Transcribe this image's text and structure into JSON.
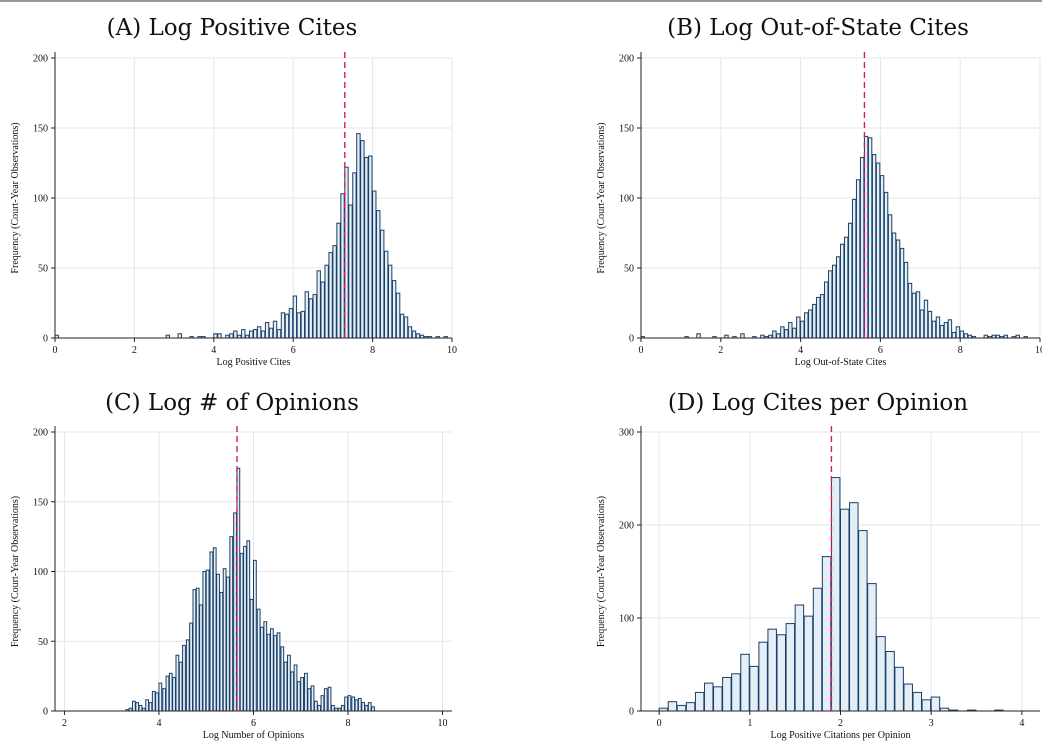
{
  "colors": {
    "bar_fill": "#e3eef7",
    "bar_stroke": "#1b3f66",
    "mean_line": "#d81b60",
    "grid": "#e6e6e6"
  },
  "chart_data": [
    {
      "type": "bar",
      "title": "(A) Log Positive Cites",
      "xlabel": "Log Positive Cites",
      "ylabel": "Frequency (Court-Year Observations)",
      "xlim": [
        0,
        10
      ],
      "ylim": [
        0,
        200
      ],
      "x_ticks": [
        "0",
        "2",
        "4",
        "6",
        "8",
        "10"
      ],
      "y_ticks": [
        "0",
        "50",
        "100",
        "150",
        "200"
      ],
      "grid": true,
      "mean_line": 7.3,
      "bin_width": 0.1,
      "bins": [
        [
          0.0,
          2
        ],
        [
          2.8,
          2
        ],
        [
          3.1,
          3
        ],
        [
          3.4,
          1
        ],
        [
          3.6,
          1
        ],
        [
          3.7,
          1
        ],
        [
          4.0,
          3
        ],
        [
          4.1,
          3
        ],
        [
          4.3,
          2
        ],
        [
          4.4,
          3
        ],
        [
          4.5,
          5
        ],
        [
          4.6,
          2
        ],
        [
          4.7,
          6
        ],
        [
          4.8,
          2
        ],
        [
          4.9,
          5
        ],
        [
          5.0,
          6
        ],
        [
          5.1,
          8
        ],
        [
          5.2,
          5
        ],
        [
          5.3,
          11
        ],
        [
          5.4,
          7
        ],
        [
          5.5,
          12
        ],
        [
          5.6,
          6
        ],
        [
          5.7,
          18
        ],
        [
          5.8,
          17
        ],
        [
          5.9,
          21
        ],
        [
          6.0,
          30
        ],
        [
          6.1,
          18
        ],
        [
          6.2,
          19
        ],
        [
          6.3,
          33
        ],
        [
          6.4,
          28
        ],
        [
          6.5,
          31
        ],
        [
          6.6,
          48
        ],
        [
          6.7,
          40
        ],
        [
          6.8,
          52
        ],
        [
          6.9,
          61
        ],
        [
          7.0,
          66
        ],
        [
          7.1,
          82
        ],
        [
          7.2,
          103
        ],
        [
          7.3,
          122
        ],
        [
          7.4,
          95
        ],
        [
          7.5,
          118
        ],
        [
          7.6,
          146
        ],
        [
          7.7,
          141
        ],
        [
          7.8,
          129
        ],
        [
          7.9,
          130
        ],
        [
          8.0,
          105
        ],
        [
          8.1,
          91
        ],
        [
          8.2,
          77
        ],
        [
          8.3,
          62
        ],
        [
          8.4,
          52
        ],
        [
          8.5,
          41
        ],
        [
          8.6,
          32
        ],
        [
          8.7,
          17
        ],
        [
          8.8,
          15
        ],
        [
          8.9,
          8
        ],
        [
          9.0,
          5
        ],
        [
          9.1,
          3
        ],
        [
          9.2,
          2
        ],
        [
          9.3,
          1
        ],
        [
          9.4,
          1
        ],
        [
          9.6,
          1
        ],
        [
          9.8,
          1
        ]
      ]
    },
    {
      "type": "bar",
      "title": "(B) Log Out-of-State Cites",
      "xlabel": "Log Out-of-State Cites",
      "ylabel": "Frequency (Court-Year Observations)",
      "xlim": [
        0,
        10
      ],
      "ylim": [
        0,
        200
      ],
      "x_ticks": [
        "0",
        "2",
        "4",
        "6",
        "8",
        "10"
      ],
      "y_ticks": [
        "0",
        "50",
        "100",
        "150",
        "200"
      ],
      "grid": true,
      "mean_line": 5.6,
      "bin_width": 0.1,
      "bins": [
        [
          0.0,
          1
        ],
        [
          1.1,
          1
        ],
        [
          1.4,
          3
        ],
        [
          1.8,
          1
        ],
        [
          2.1,
          2
        ],
        [
          2.3,
          1
        ],
        [
          2.5,
          3
        ],
        [
          2.8,
          1
        ],
        [
          3.0,
          2
        ],
        [
          3.1,
          1
        ],
        [
          3.2,
          2
        ],
        [
          3.3,
          5
        ],
        [
          3.4,
          3
        ],
        [
          3.5,
          8
        ],
        [
          3.6,
          6
        ],
        [
          3.7,
          11
        ],
        [
          3.8,
          7
        ],
        [
          3.9,
          15
        ],
        [
          4.0,
          12
        ],
        [
          4.1,
          18
        ],
        [
          4.2,
          20
        ],
        [
          4.3,
          24
        ],
        [
          4.4,
          29
        ],
        [
          4.5,
          31
        ],
        [
          4.6,
          40
        ],
        [
          4.7,
          48
        ],
        [
          4.8,
          52
        ],
        [
          4.9,
          58
        ],
        [
          5.0,
          67
        ],
        [
          5.1,
          72
        ],
        [
          5.2,
          82
        ],
        [
          5.3,
          99
        ],
        [
          5.4,
          113
        ],
        [
          5.5,
          129
        ],
        [
          5.6,
          144
        ],
        [
          5.7,
          143
        ],
        [
          5.8,
          131
        ],
        [
          5.9,
          125
        ],
        [
          6.0,
          116
        ],
        [
          6.1,
          104
        ],
        [
          6.2,
          88
        ],
        [
          6.3,
          75
        ],
        [
          6.4,
          70
        ],
        [
          6.5,
          64
        ],
        [
          6.6,
          54
        ],
        [
          6.7,
          39
        ],
        [
          6.8,
          32
        ],
        [
          6.9,
          33
        ],
        [
          7.0,
          20
        ],
        [
          7.1,
          27
        ],
        [
          7.2,
          19
        ],
        [
          7.3,
          12
        ],
        [
          7.4,
          15
        ],
        [
          7.5,
          9
        ],
        [
          7.6,
          11
        ],
        [
          7.7,
          13
        ],
        [
          7.8,
          4
        ],
        [
          7.9,
          8
        ],
        [
          8.0,
          5
        ],
        [
          8.1,
          3
        ],
        [
          8.2,
          2
        ],
        [
          8.3,
          1
        ],
        [
          8.6,
          2
        ],
        [
          8.7,
          1
        ],
        [
          8.8,
          2
        ],
        [
          8.9,
          2
        ],
        [
          9.0,
          1
        ],
        [
          9.1,
          2
        ],
        [
          9.3,
          1
        ],
        [
          9.4,
          2
        ],
        [
          9.6,
          1
        ]
      ]
    },
    {
      "type": "bar",
      "title": "(C) Log # of Opinions",
      "xlabel": "Log Number of Opinions",
      "ylabel": "Frequency (Court-Year Observations)",
      "xlim": [
        1.8,
        10.2
      ],
      "ylim": [
        0,
        200
      ],
      "x_ticks": [
        "2",
        "4",
        "6",
        "8",
        "10"
      ],
      "y_ticks": [
        "0",
        "50",
        "100",
        "150",
        "200"
      ],
      "grid": true,
      "mean_line": 5.65,
      "bin_width": 0.0714,
      "bins": [
        [
          3.3,
          1
        ],
        [
          3.37,
          2
        ],
        [
          3.44,
          7
        ],
        [
          3.51,
          6
        ],
        [
          3.58,
          4
        ],
        [
          3.65,
          2
        ],
        [
          3.72,
          8
        ],
        [
          3.79,
          6
        ],
        [
          3.86,
          14
        ],
        [
          3.93,
          13
        ],
        [
          4.0,
          20
        ],
        [
          4.08,
          16
        ],
        [
          4.15,
          25
        ],
        [
          4.22,
          27
        ],
        [
          4.29,
          24
        ],
        [
          4.36,
          40
        ],
        [
          4.43,
          35
        ],
        [
          4.5,
          47
        ],
        [
          4.58,
          51
        ],
        [
          4.65,
          63
        ],
        [
          4.72,
          87
        ],
        [
          4.79,
          88
        ],
        [
          4.86,
          76
        ],
        [
          4.93,
          100
        ],
        [
          5.0,
          101
        ],
        [
          5.08,
          114
        ],
        [
          5.15,
          117
        ],
        [
          5.22,
          98
        ],
        [
          5.29,
          85
        ],
        [
          5.36,
          102
        ],
        [
          5.43,
          96
        ],
        [
          5.5,
          125
        ],
        [
          5.58,
          142
        ],
        [
          5.65,
          174
        ],
        [
          5.72,
          113
        ],
        [
          5.79,
          118
        ],
        [
          5.86,
          122
        ],
        [
          5.93,
          80
        ],
        [
          6.0,
          108
        ],
        [
          6.08,
          73
        ],
        [
          6.15,
          60
        ],
        [
          6.22,
          64
        ],
        [
          6.29,
          55
        ],
        [
          6.36,
          59
        ],
        [
          6.43,
          54
        ],
        [
          6.5,
          56
        ],
        [
          6.58,
          46
        ],
        [
          6.65,
          35
        ],
        [
          6.72,
          40
        ],
        [
          6.79,
          28
        ],
        [
          6.86,
          33
        ],
        [
          6.93,
          21
        ],
        [
          7.0,
          24
        ],
        [
          7.08,
          27
        ],
        [
          7.15,
          16
        ],
        [
          7.22,
          18
        ],
        [
          7.29,
          7
        ],
        [
          7.36,
          4
        ],
        [
          7.43,
          11
        ],
        [
          7.5,
          16
        ],
        [
          7.58,
          17
        ],
        [
          7.65,
          4
        ],
        [
          7.72,
          2
        ],
        [
          7.79,
          2
        ],
        [
          7.86,
          4
        ],
        [
          7.93,
          10
        ],
        [
          8.0,
          11
        ],
        [
          8.08,
          10
        ],
        [
          8.15,
          8
        ],
        [
          8.22,
          9
        ],
        [
          8.29,
          6
        ],
        [
          8.36,
          4
        ],
        [
          8.43,
          6
        ],
        [
          8.5,
          3
        ]
      ]
    },
    {
      "type": "bar",
      "title": "(D) Log Cites per Opinion",
      "xlabel": "Log Positive Citations per Opinion",
      "ylabel": "Frequency (Court-Year Observations)",
      "xlim": [
        -0.2,
        4.2
      ],
      "ylim": [
        0,
        300
      ],
      "x_ticks": [
        "0",
        "1",
        "2",
        "3",
        "4"
      ],
      "y_ticks": [
        "0",
        "100",
        "200",
        "300"
      ],
      "grid": true,
      "mean_line": 1.9,
      "bin_width": 0.1,
      "bins": [
        [
          0.0,
          3
        ],
        [
          0.1,
          10
        ],
        [
          0.2,
          6
        ],
        [
          0.3,
          9
        ],
        [
          0.4,
          20
        ],
        [
          0.5,
          30
        ],
        [
          0.6,
          26
        ],
        [
          0.7,
          36
        ],
        [
          0.8,
          40
        ],
        [
          0.9,
          61
        ],
        [
          1.0,
          48
        ],
        [
          1.1,
          74
        ],
        [
          1.2,
          88
        ],
        [
          1.3,
          82
        ],
        [
          1.4,
          94
        ],
        [
          1.5,
          114
        ],
        [
          1.6,
          102
        ],
        [
          1.7,
          132
        ],
        [
          1.8,
          166
        ],
        [
          1.9,
          251
        ],
        [
          2.0,
          217
        ],
        [
          2.1,
          224
        ],
        [
          2.2,
          194
        ],
        [
          2.3,
          137
        ],
        [
          2.4,
          80
        ],
        [
          2.5,
          64
        ],
        [
          2.6,
          47
        ],
        [
          2.7,
          29
        ],
        [
          2.8,
          20
        ],
        [
          2.9,
          12
        ],
        [
          3.0,
          15
        ],
        [
          3.1,
          3
        ],
        [
          3.2,
          1
        ],
        [
          3.4,
          1
        ],
        [
          3.7,
          1
        ]
      ]
    }
  ]
}
